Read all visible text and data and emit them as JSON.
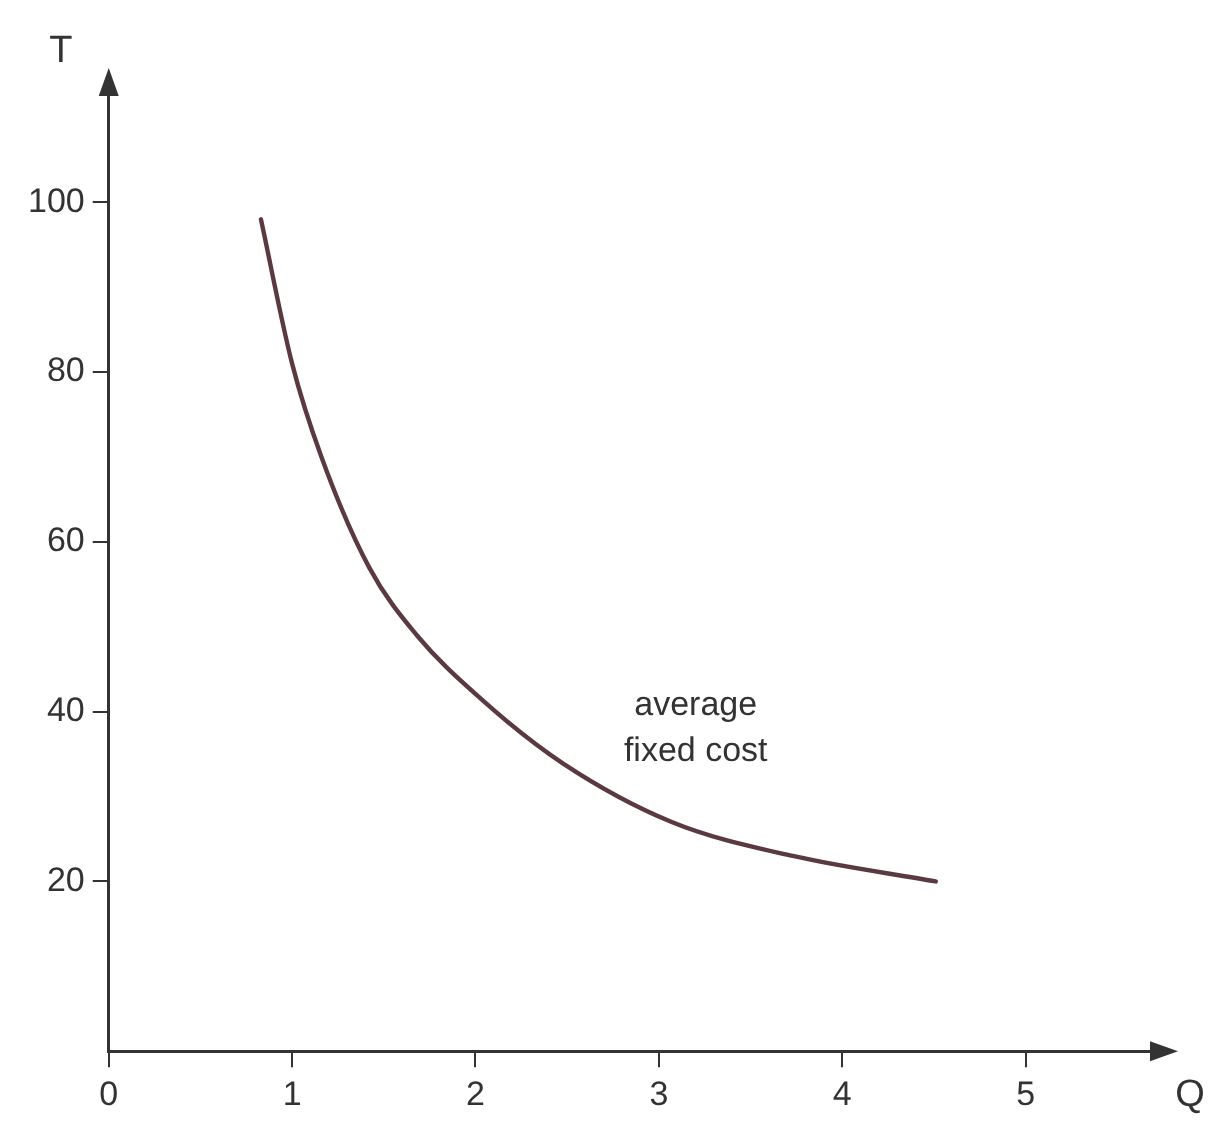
{
  "chart_data": {
    "type": "line",
    "xlabel": "Q",
    "ylabel": "T",
    "xlim": [
      0,
      5.7
    ],
    "ylim": [
      0,
      113
    ],
    "xticks": [
      0,
      1,
      2,
      3,
      4,
      5
    ],
    "yticks": [
      20,
      40,
      60,
      80,
      100
    ],
    "grid": false,
    "legend": false,
    "marker": "none",
    "line_style": "solid",
    "series": [
      {
        "name": "average fixed cost",
        "color": "#5a3a40",
        "x": [
          0.83,
          1.0,
          1.16,
          1.42,
          1.68,
          2.03,
          2.47,
          3.07,
          3.73,
          4.51
        ],
        "values": [
          98,
          81,
          70,
          57,
          49,
          41.5,
          34,
          27,
          23,
          20
        ]
      }
    ]
  }
}
